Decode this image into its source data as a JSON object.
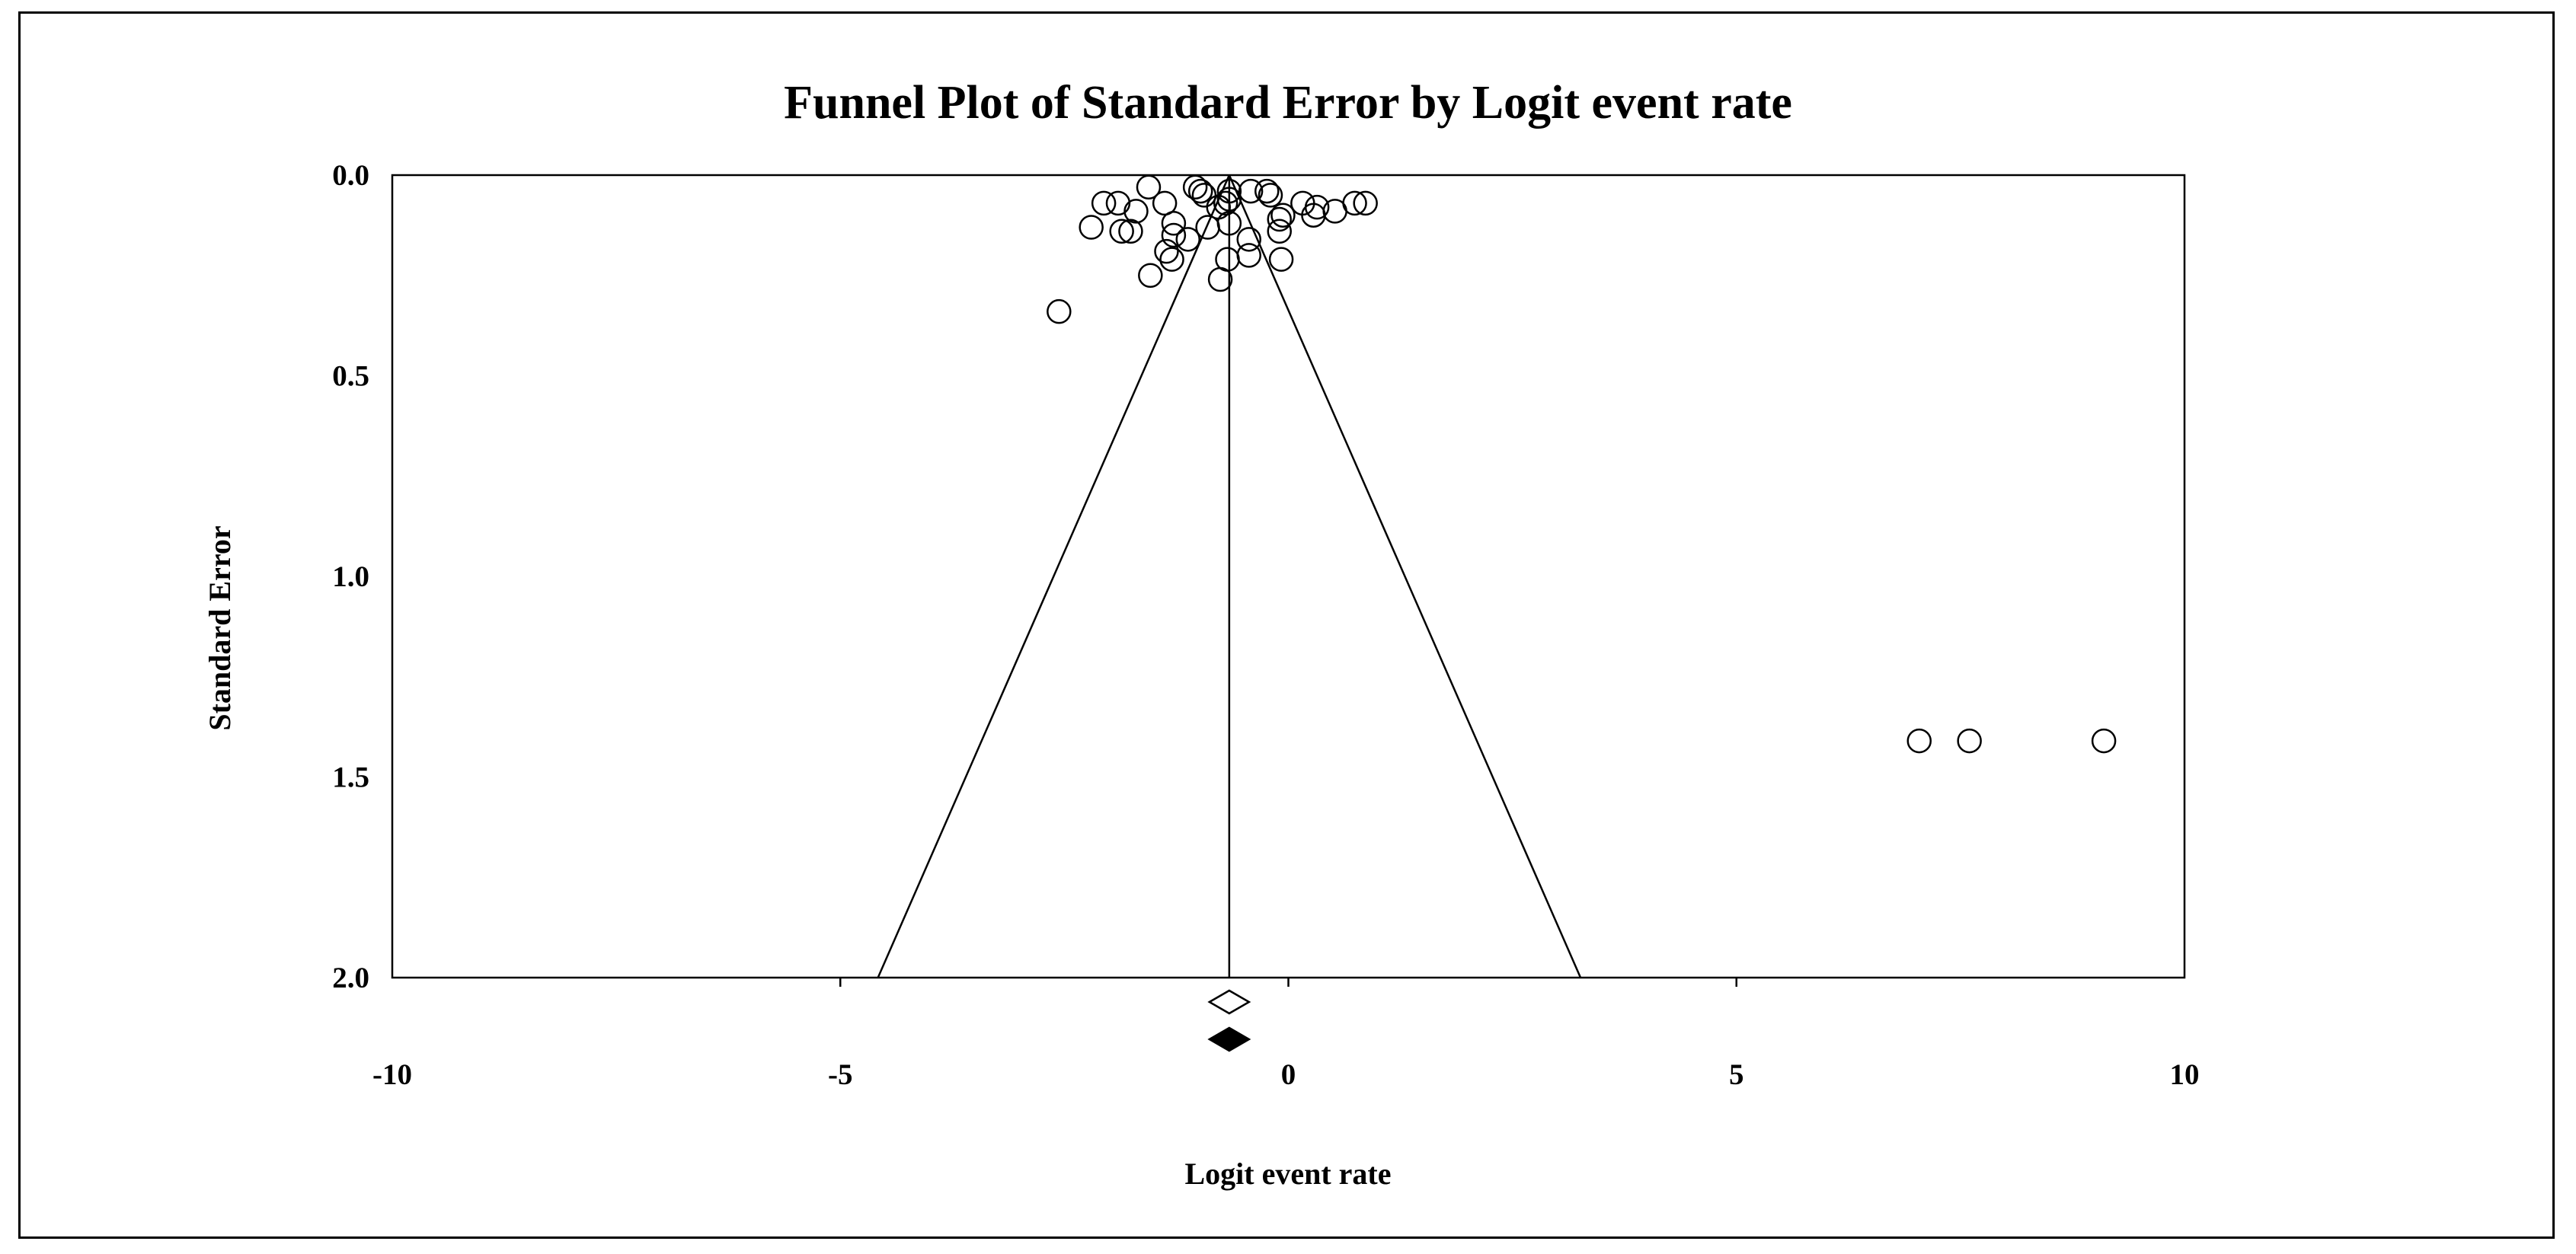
{
  "chart_data": {
    "type": "scatter",
    "title": "Funnel Plot of Standard Error by Logit event rate",
    "xlabel": "Logit event rate",
    "ylabel": "Standard Error",
    "xlim": [
      -10,
      10
    ],
    "ylim": [
      0,
      2
    ],
    "y_inverted": true,
    "x_ticks": [
      -10,
      -5,
      0,
      5,
      10
    ],
    "x_tick_labels": [
      "-10",
      "-5",
      "0",
      "5",
      "10"
    ],
    "y_ticks": [
      0,
      0.5,
      1,
      1.5,
      2
    ],
    "y_tick_labels": [
      "0.0",
      "0.5",
      "1.0",
      "1.5",
      "2.0"
    ],
    "grid": false,
    "legend": "none",
    "pooled_estimate": -0.66,
    "funnel": {
      "apex": [
        -0.66,
        0
      ],
      "left_at_se_2": [
        -4.58,
        2
      ],
      "right_at_se_2": [
        3.26,
        2
      ]
    },
    "summary_diamonds": [
      {
        "name": "observed",
        "x": -0.66,
        "fill": "#ffffff"
      },
      {
        "name": "imputed",
        "x": -0.66,
        "fill": "#000000"
      }
    ],
    "series": [
      {
        "marker": "open-circle",
        "points": [
          [
            -1.56,
            0.03
          ],
          [
            -1.04,
            0.03
          ],
          [
            -0.98,
            0.04
          ],
          [
            -0.66,
            0.04
          ],
          [
            -0.42,
            0.04
          ],
          [
            -0.24,
            0.04
          ],
          [
            -0.2,
            0.05
          ],
          [
            -0.94,
            0.05
          ],
          [
            -0.66,
            0.06
          ],
          [
            -0.7,
            0.07
          ],
          [
            -2.06,
            0.07
          ],
          [
            -1.9,
            0.07
          ],
          [
            -1.38,
            0.07
          ],
          [
            0.16,
            0.07
          ],
          [
            0.74,
            0.07
          ],
          [
            0.86,
            0.07
          ],
          [
            -0.78,
            0.08
          ],
          [
            0.32,
            0.08
          ],
          [
            -1.7,
            0.09
          ],
          [
            0.52,
            0.09
          ],
          [
            -0.06,
            0.1
          ],
          [
            0.28,
            0.1
          ],
          [
            -0.1,
            0.11
          ],
          [
            -1.28,
            0.12
          ],
          [
            -0.66,
            0.12
          ],
          [
            -0.9,
            0.13
          ],
          [
            -2.2,
            0.13
          ],
          [
            -1.86,
            0.14
          ],
          [
            -1.76,
            0.14
          ],
          [
            -0.1,
            0.14
          ],
          [
            -1.28,
            0.15
          ],
          [
            -1.12,
            0.16
          ],
          [
            -0.44,
            0.16
          ],
          [
            -1.36,
            0.19
          ],
          [
            -1.3,
            0.21
          ],
          [
            -0.68,
            0.21
          ],
          [
            -0.44,
            0.2
          ],
          [
            -0.08,
            0.21
          ],
          [
            -1.54,
            0.25
          ],
          [
            -0.76,
            0.26
          ],
          [
            -2.56,
            0.34
          ],
          [
            7.04,
            1.41
          ],
          [
            7.6,
            1.41
          ],
          [
            9.1,
            1.41
          ]
        ]
      }
    ]
  }
}
